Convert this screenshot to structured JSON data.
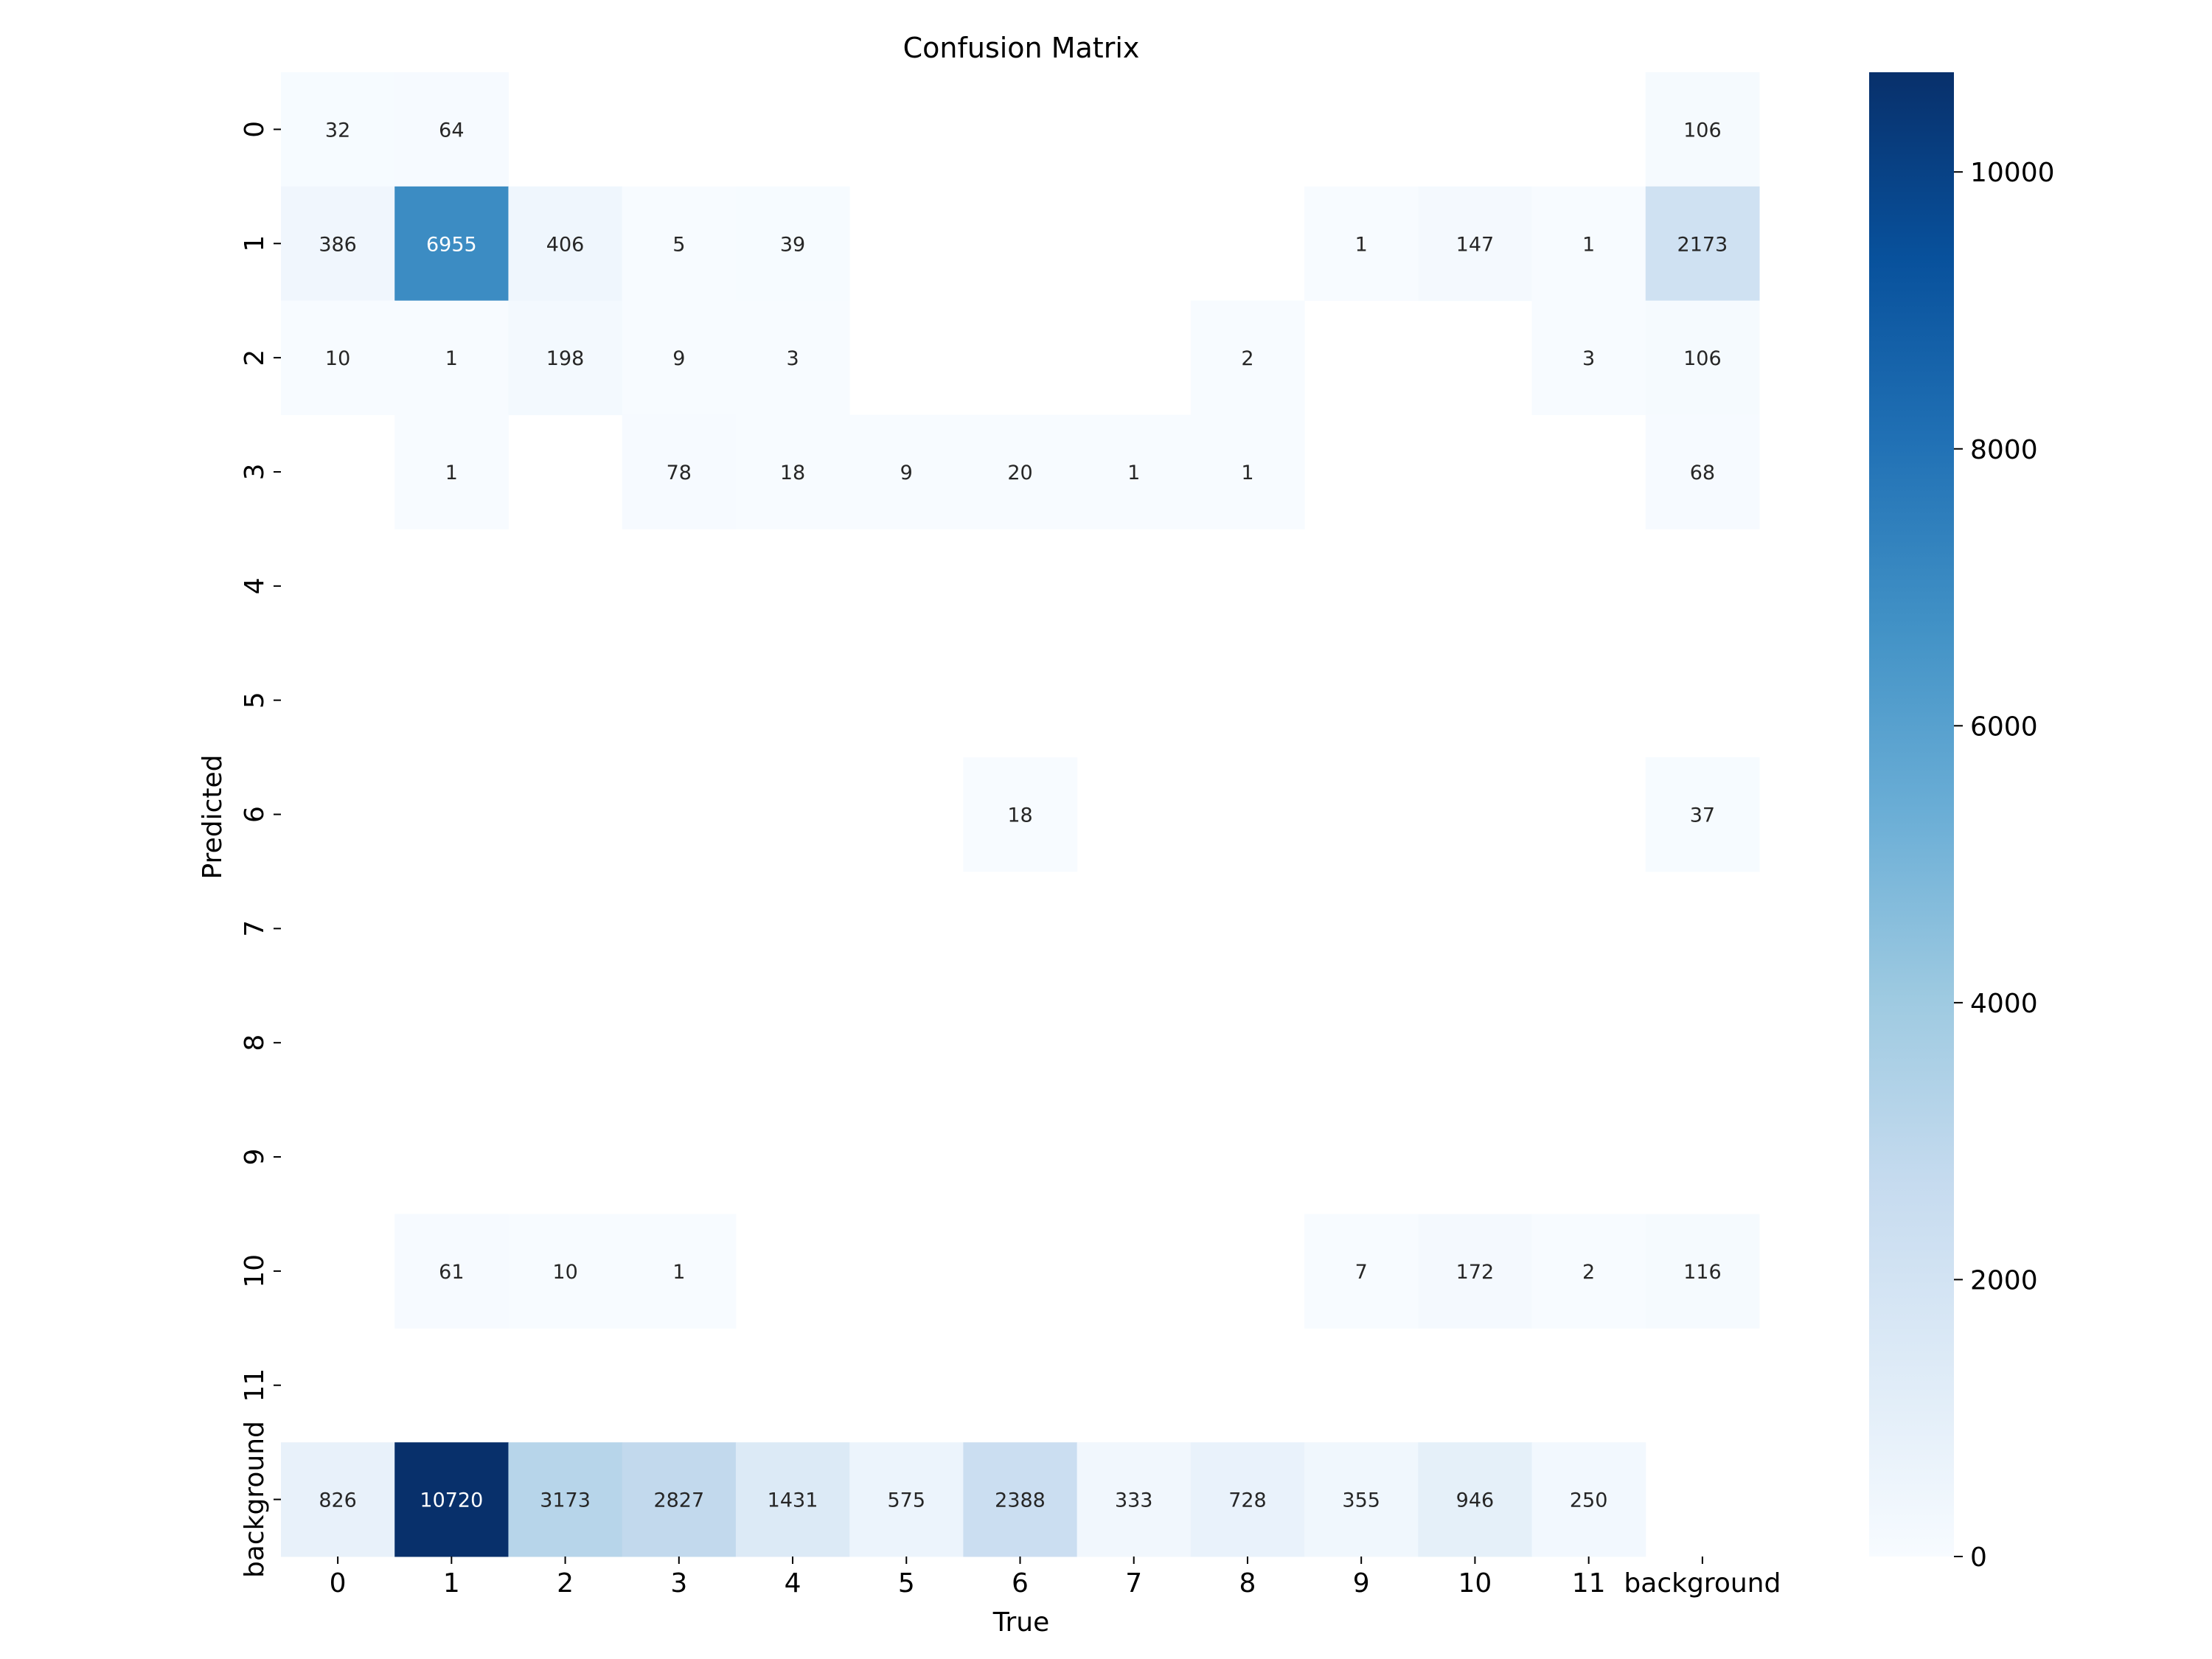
{
  "chart_data": {
    "type": "heatmap",
    "title": "Confusion Matrix",
    "xlabel": "True",
    "ylabel": "Predicted",
    "x_categories": [
      "0",
      "1",
      "2",
      "3",
      "4",
      "5",
      "6",
      "7",
      "8",
      "9",
      "10",
      "11",
      "background"
    ],
    "y_categories": [
      "0",
      "1",
      "2",
      "3",
      "4",
      "5",
      "6",
      "7",
      "8",
      "9",
      "10",
      "11",
      "background"
    ],
    "matrix": [
      [
        32,
        64,
        null,
        null,
        null,
        null,
        null,
        null,
        null,
        null,
        null,
        null,
        106
      ],
      [
        386,
        6955,
        406,
        5,
        39,
        null,
        null,
        null,
        null,
        1,
        147,
        1,
        2173
      ],
      [
        10,
        1,
        198,
        9,
        3,
        null,
        null,
        null,
        2,
        null,
        null,
        3,
        106
      ],
      [
        null,
        1,
        null,
        78,
        18,
        9,
        20,
        1,
        1,
        null,
        null,
        null,
        68
      ],
      [
        null,
        null,
        null,
        null,
        null,
        null,
        null,
        null,
        null,
        null,
        null,
        null,
        null
      ],
      [
        null,
        null,
        null,
        null,
        null,
        null,
        null,
        null,
        null,
        null,
        null,
        null,
        null
      ],
      [
        null,
        null,
        null,
        null,
        null,
        null,
        18,
        null,
        null,
        null,
        null,
        null,
        37
      ],
      [
        null,
        null,
        null,
        null,
        null,
        null,
        null,
        null,
        null,
        null,
        null,
        null,
        null
      ],
      [
        null,
        null,
        null,
        null,
        null,
        null,
        null,
        null,
        null,
        null,
        null,
        null,
        null
      ],
      [
        null,
        null,
        null,
        null,
        null,
        null,
        null,
        null,
        null,
        null,
        null,
        null,
        null
      ],
      [
        null,
        61,
        10,
        1,
        null,
        null,
        null,
        null,
        null,
        7,
        172,
        2,
        116
      ],
      [
        null,
        null,
        null,
        null,
        null,
        null,
        null,
        null,
        null,
        null,
        null,
        null,
        null
      ],
      [
        826,
        10720,
        3173,
        2827,
        1431,
        575,
        2388,
        333,
        728,
        355,
        946,
        250,
        null
      ]
    ],
    "colorbar": {
      "range": [
        0,
        10720
      ],
      "ticks": [
        0,
        2000,
        4000,
        6000,
        8000,
        10000
      ],
      "colormap": "Blues",
      "colors": [
        "#f7fbff",
        "#deebf7",
        "#c6dbef",
        "#9ecae1",
        "#6baed6",
        "#4292c6",
        "#2171b5",
        "#08519c",
        "#08306b"
      ]
    }
  }
}
